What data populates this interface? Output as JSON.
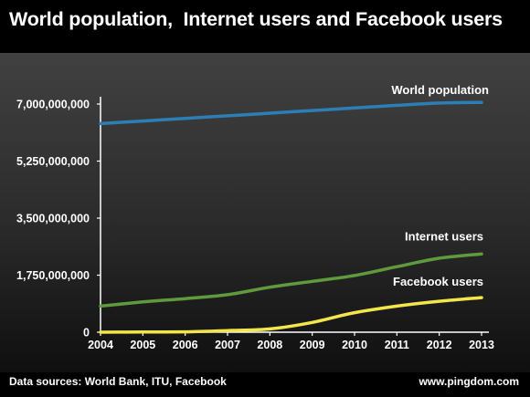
{
  "title": "World population,  Internet users and Facebook users",
  "footer": {
    "sources": "Data sources: World Bank, ITU, Facebook",
    "site": "www.pingdom.com"
  },
  "colors": {
    "world_population": "#2b7fb5",
    "internet_users": "#5f9a3c",
    "facebook_users": "#f2e64a",
    "axis": "#ffffff"
  },
  "chart_data": {
    "type": "line",
    "title": "World population,  Internet users and Facebook users",
    "xlabel": "",
    "ylabel": "",
    "x": [
      2004,
      2005,
      2006,
      2007,
      2008,
      2009,
      2010,
      2011,
      2012,
      2013
    ],
    "x_tick_labels": [
      "2004",
      "2005",
      "2006",
      "2007",
      "2008",
      "2009",
      "2010",
      "2011",
      "2012",
      "2013"
    ],
    "ylim": [
      0,
      7000000000
    ],
    "y_ticks": [
      0,
      1750000000,
      3500000000,
      5250000000,
      7000000000
    ],
    "y_tick_labels": [
      "0",
      "1,750,000,000",
      "3,500,000,000",
      "5,250,000,000",
      "7,000,000,000"
    ],
    "grid": false,
    "legend": "inline labels at line ends",
    "series": [
      {
        "name": "World population",
        "color": "#2b7fb5",
        "values": [
          6400000000,
          6480000000,
          6560000000,
          6640000000,
          6720000000,
          6800000000,
          6880000000,
          6960000000,
          7030000000,
          7050000000
        ]
      },
      {
        "name": "Internet users",
        "color": "#5f9a3c",
        "values": [
          800000000,
          930000000,
          1030000000,
          1150000000,
          1380000000,
          1560000000,
          1740000000,
          2010000000,
          2270000000,
          2400000000
        ]
      },
      {
        "name": "Facebook users",
        "color": "#f2e64a",
        "values": [
          1000000,
          6000000,
          12000000,
          50000000,
          100000000,
          300000000,
          600000000,
          800000000,
          950000000,
          1060000000
        ]
      }
    ]
  }
}
